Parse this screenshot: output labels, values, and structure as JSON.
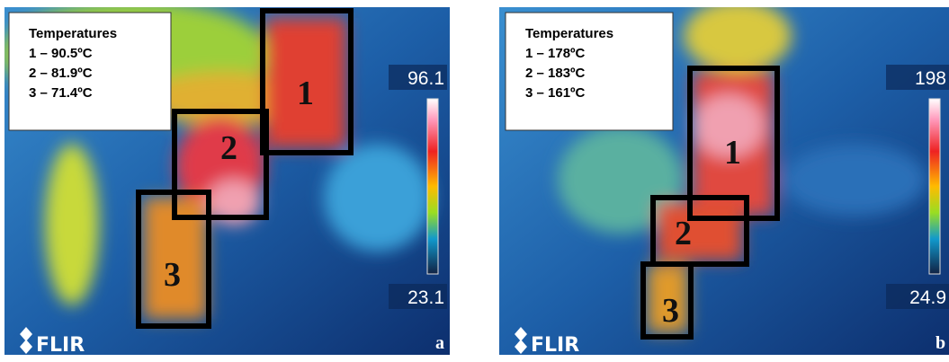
{
  "panels": [
    {
      "legend_title": "Temperatures",
      "readings": [
        "1 – 90.5ºC",
        "2 – 81.9ºC",
        "3 – 71.4ºC"
      ],
      "scale_max": "96.1",
      "scale_min": "23.1",
      "box_labels": [
        "1",
        "2",
        "3"
      ],
      "logo": "FLIR",
      "letter": "a"
    },
    {
      "legend_title": "Temperatures",
      "readings": [
        "1 – 178ºC",
        "2 – 183ºC",
        "3 – 161ºC"
      ],
      "scale_max": "198",
      "scale_min": "24.9",
      "box_labels": [
        "1",
        "2",
        "3"
      ],
      "logo": "FLIR",
      "letter": "b"
    }
  ]
}
